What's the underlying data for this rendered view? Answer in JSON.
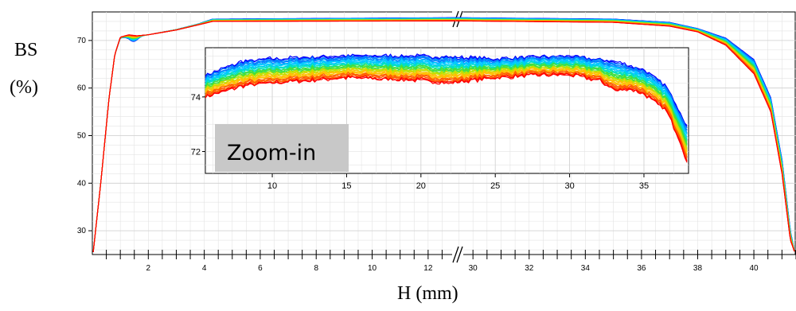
{
  "chart_data": [
    {
      "type": "line",
      "title": "",
      "xlabel": "H (mm)",
      "ylabel_line1": "BS",
      "ylabel_line2": "(%)",
      "ylim": [
        25,
        76
      ],
      "x_segments": [
        {
          "range": [
            0,
            13
          ],
          "ticks": [
            2,
            4,
            6,
            8,
            10,
            12
          ]
        },
        {
          "range": [
            29.4,
            41.5
          ],
          "ticks": [
            30,
            32,
            34,
            36,
            38,
            40
          ]
        }
      ],
      "y_ticks": [
        30,
        40,
        50,
        60,
        70
      ],
      "grid": true,
      "colormap": [
        "#0000ff",
        "#0080ff",
        "#00c8ff",
        "#00e0c0",
        "#40e040",
        "#c0e000",
        "#ffc000",
        "#ff6000",
        "#ff0000"
      ],
      "series_count": 30,
      "profile_first_scan": [
        [
          0.03,
          25.5
        ],
        [
          0.3,
          40
        ],
        [
          0.6,
          58
        ],
        [
          0.8,
          67
        ],
        [
          1.0,
          70.5
        ],
        [
          1.3,
          71.1
        ],
        [
          1.6,
          70.9
        ],
        [
          2.0,
          71.2
        ],
        [
          3.0,
          72.3
        ],
        [
          3.8,
          73.5
        ],
        [
          4.3,
          74.5
        ],
        [
          13,
          74.8
        ],
        [
          29.4,
          74.8
        ],
        [
          35,
          74.5
        ],
        [
          37,
          73.8
        ],
        [
          38,
          72.5
        ],
        [
          39,
          70.5
        ],
        [
          40,
          66
        ],
        [
          40.6,
          58
        ],
        [
          41,
          45
        ],
        [
          41.3,
          30
        ],
        [
          41.45,
          25.5
        ]
      ],
      "profile_last_scan": [
        [
          0.03,
          25.5
        ],
        [
          0.3,
          40
        ],
        [
          0.6,
          58
        ],
        [
          0.8,
          67
        ],
        [
          1.0,
          70.7
        ],
        [
          1.3,
          71.2
        ],
        [
          1.6,
          71.0
        ],
        [
          2.0,
          71.2
        ],
        [
          3.0,
          72.2
        ],
        [
          3.8,
          73.3
        ],
        [
          4.3,
          74.0
        ],
        [
          13,
          74.1
        ],
        [
          29.4,
          74.1
        ],
        [
          35,
          73.8
        ],
        [
          37,
          73.0
        ],
        [
          38,
          71.8
        ],
        [
          39,
          69.0
        ],
        [
          40,
          63
        ],
        [
          40.6,
          55
        ],
        [
          41,
          42
        ],
        [
          41.3,
          28
        ],
        [
          41.45,
          25.5
        ]
      ],
      "break_marker": "//"
    },
    {
      "type": "line",
      "title": "",
      "annotation": "Zoom-in",
      "ylim": [
        71.2,
        75.8
      ],
      "x_range": [
        5.5,
        38
      ],
      "x_ticks": [
        10,
        15,
        20,
        25,
        30,
        35
      ],
      "y_ticks": [
        72,
        74
      ],
      "grid": true,
      "series_count": 30,
      "profile_first_scan": [
        [
          5.5,
          74.8
        ],
        [
          8,
          75.3
        ],
        [
          10,
          75.4
        ],
        [
          15,
          75.5
        ],
        [
          20,
          75.5
        ],
        [
          25,
          75.4
        ],
        [
          30,
          75.5
        ],
        [
          33,
          75.3
        ],
        [
          35,
          75.0
        ],
        [
          36.5,
          74.4
        ],
        [
          37.5,
          73.4
        ],
        [
          38,
          72.8
        ]
      ],
      "profile_last_scan": [
        [
          5.5,
          74.0
        ],
        [
          8,
          74.4
        ],
        [
          10,
          74.5
        ],
        [
          15,
          74.7
        ],
        [
          20,
          74.6
        ],
        [
          22,
          74.5
        ],
        [
          25,
          74.7
        ],
        [
          28,
          74.8
        ],
        [
          30,
          74.8
        ],
        [
          32,
          74.6
        ],
        [
          33.2,
          74.2
        ],
        [
          34,
          74.3
        ],
        [
          35,
          74.1
        ],
        [
          36.5,
          73.5
        ],
        [
          37.5,
          72.3
        ],
        [
          38,
          71.4
        ]
      ]
    }
  ]
}
